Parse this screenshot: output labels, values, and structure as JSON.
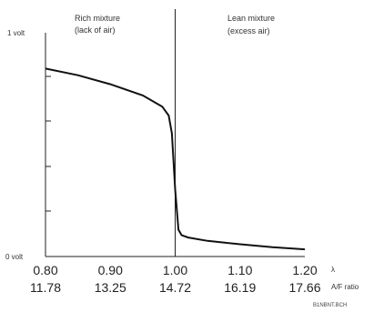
{
  "chart_data": {
    "type": "line",
    "x_lambda": [
      0.8,
      0.85,
      0.9,
      0.95,
      0.98,
      0.99,
      0.995,
      1.0,
      1.005,
      1.01,
      1.02,
      1.05,
      1.1,
      1.15,
      1.2
    ],
    "y_volt": [
      0.84,
      0.81,
      0.77,
      0.72,
      0.67,
      0.63,
      0.55,
      0.3,
      0.12,
      0.095,
      0.085,
      0.07,
      0.055,
      0.042,
      0.032
    ],
    "xlim": [
      0.8,
      1.2
    ],
    "ylim": [
      0,
      1
    ],
    "lambda_ticks": [
      "0.80",
      "0.90",
      "1.00",
      "1.10",
      "1.20"
    ],
    "af_ticks": [
      "11.78",
      "13.25",
      "14.72",
      "16.19",
      "17.66"
    ],
    "lambda_label": "λ",
    "af_label": "A/F ratio",
    "y_top_label": "1 volt",
    "y_bottom_label": "0 volt",
    "rich_region": {
      "line1": "Rich mixture",
      "line2": "(lack of air)"
    },
    "lean_region": {
      "line1": "Lean mixture",
      "line2": "(excess air)"
    },
    "stoich_line_x": 1.0,
    "curve_color": "#111111"
  },
  "figure_code": "B1NBNT.BCH"
}
